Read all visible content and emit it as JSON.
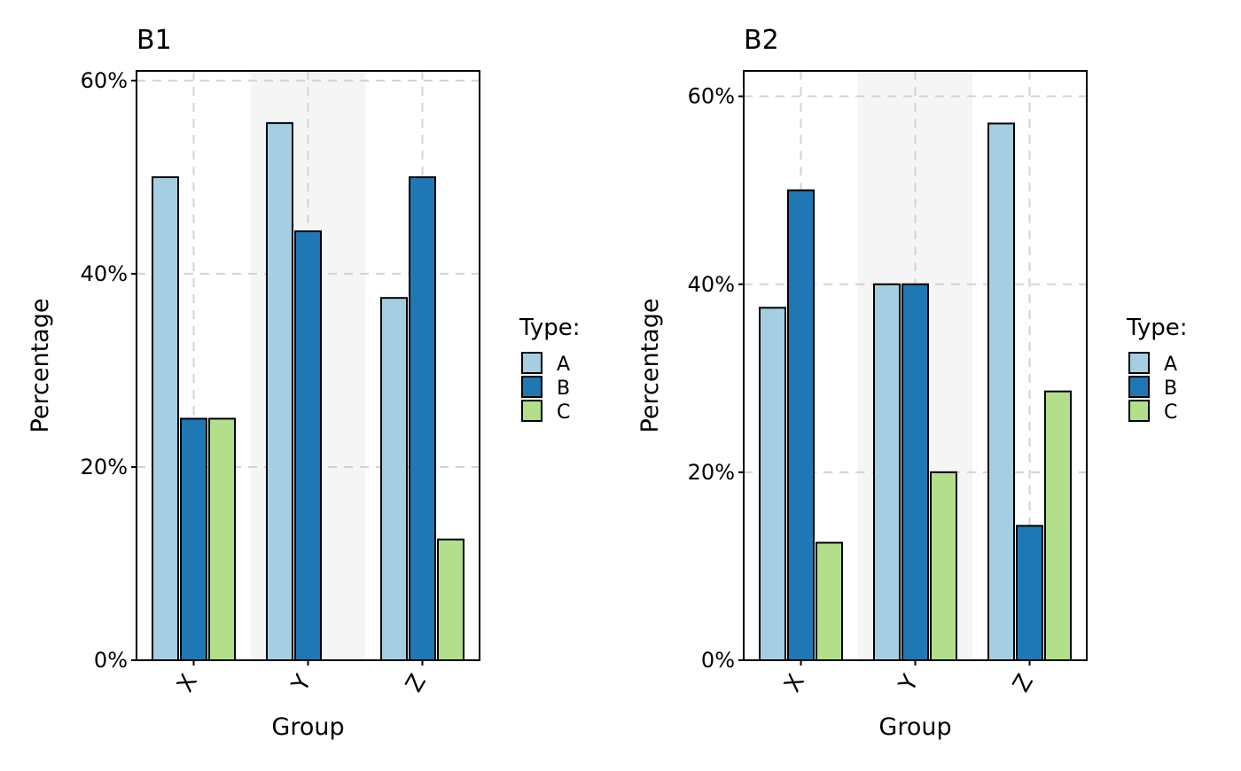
{
  "colors": {
    "A": "#A6CEE3",
    "B": "#1F78B4",
    "C": "#B2DF8A"
  },
  "chart_data": [
    {
      "type": "bar",
      "title": "B1",
      "xlabel": "Group",
      "ylabel": "Percentage",
      "categories": [
        "X",
        "Y",
        "Z"
      ],
      "ylim": [
        0,
        61
      ],
      "yticks": [
        0,
        20,
        40,
        60
      ],
      "ytick_labels": [
        "0%",
        "20%",
        "40%",
        "60%"
      ],
      "legend_title": "Type:",
      "legend_position": "right",
      "highlight_category": "Y",
      "grid": true,
      "series": [
        {
          "name": "A",
          "values": [
            50.0,
            55.6,
            37.5
          ]
        },
        {
          "name": "B",
          "values": [
            25.0,
            44.4,
            50.0
          ]
        },
        {
          "name": "C",
          "values": [
            25.0,
            0.0,
            12.5
          ]
        }
      ]
    },
    {
      "type": "bar",
      "title": "B2",
      "xlabel": "Group",
      "ylabel": "Percentage",
      "categories": [
        "X",
        "Y",
        "Z"
      ],
      "ylim": [
        0,
        62.7
      ],
      "yticks": [
        0,
        20,
        40,
        60
      ],
      "ytick_labels": [
        "0%",
        "20%",
        "40%",
        "60%"
      ],
      "legend_title": "Type:",
      "legend_position": "right",
      "highlight_category": "Y",
      "grid": true,
      "series": [
        {
          "name": "A",
          "values": [
            37.5,
            40.0,
            57.1
          ]
        },
        {
          "name": "B",
          "values": [
            50.0,
            40.0,
            14.3
          ]
        },
        {
          "name": "C",
          "values": [
            12.5,
            20.0,
            28.6
          ]
        }
      ]
    }
  ]
}
